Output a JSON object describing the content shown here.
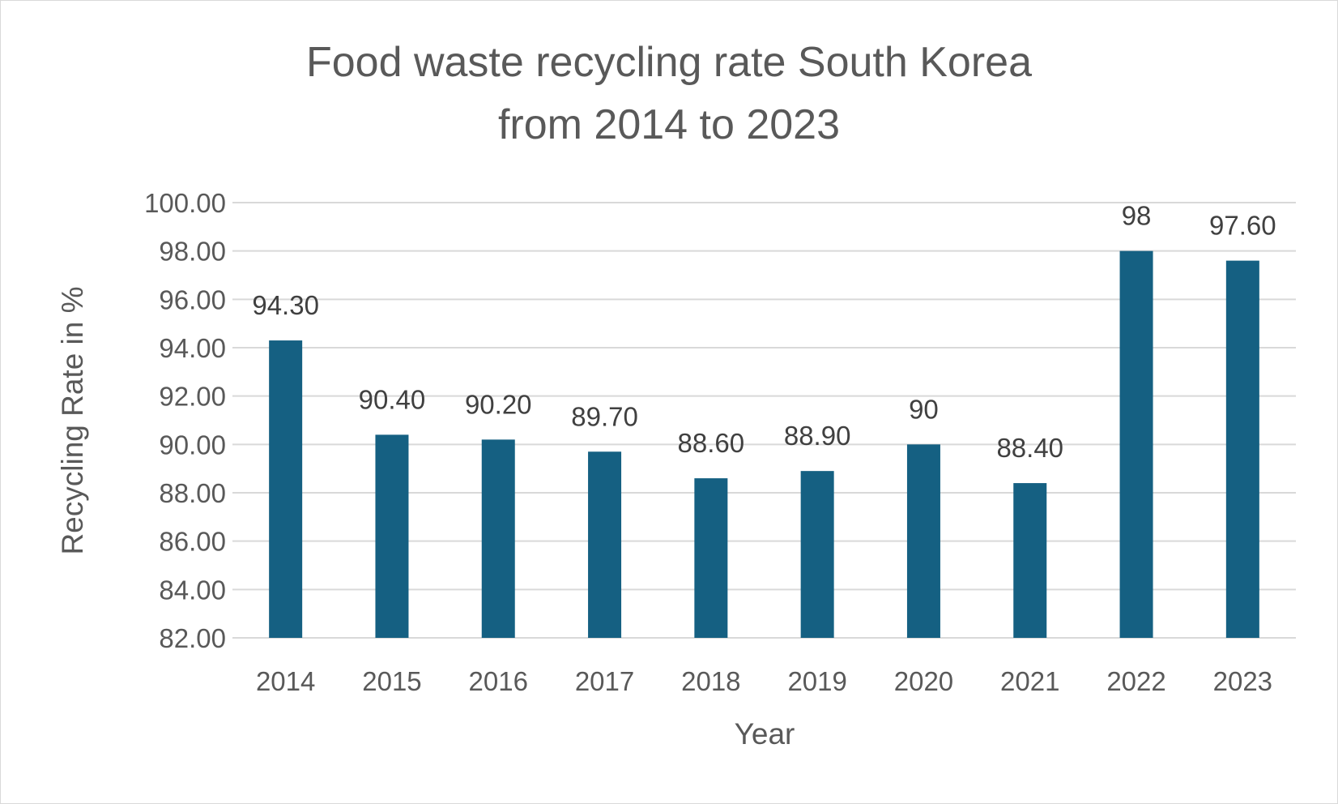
{
  "chart_data": {
    "type": "bar",
    "title_lines": [
      "Food waste recycling rate South Korea",
      "from 2014 to 2023"
    ],
    "xlabel": "Year",
    "ylabel": "Recycling Rate in %",
    "categories": [
      "2014",
      "2015",
      "2016",
      "2017",
      "2018",
      "2019",
      "2020",
      "2021",
      "2022",
      "2023"
    ],
    "values": [
      94.3,
      90.4,
      90.2,
      89.7,
      88.6,
      88.9,
      90,
      88.4,
      98,
      97.6
    ],
    "data_labels": [
      "94.30",
      "90.40",
      "90.20",
      "89.70",
      "88.60",
      "88.90",
      "90",
      "88.40",
      "98",
      "97.60"
    ],
    "ylim": [
      82,
      100
    ],
    "yticks": [
      "82.00",
      "84.00",
      "86.00",
      "88.00",
      "90.00",
      "92.00",
      "94.00",
      "96.00",
      "98.00",
      "100.00"
    ],
    "ytick_values": [
      82,
      84,
      86,
      88,
      90,
      92,
      94,
      96,
      98,
      100
    ],
    "grid": true,
    "legend": "none",
    "bar_color": "#156082",
    "grid_color": "#d9d9d9",
    "text_color": "#595959"
  }
}
